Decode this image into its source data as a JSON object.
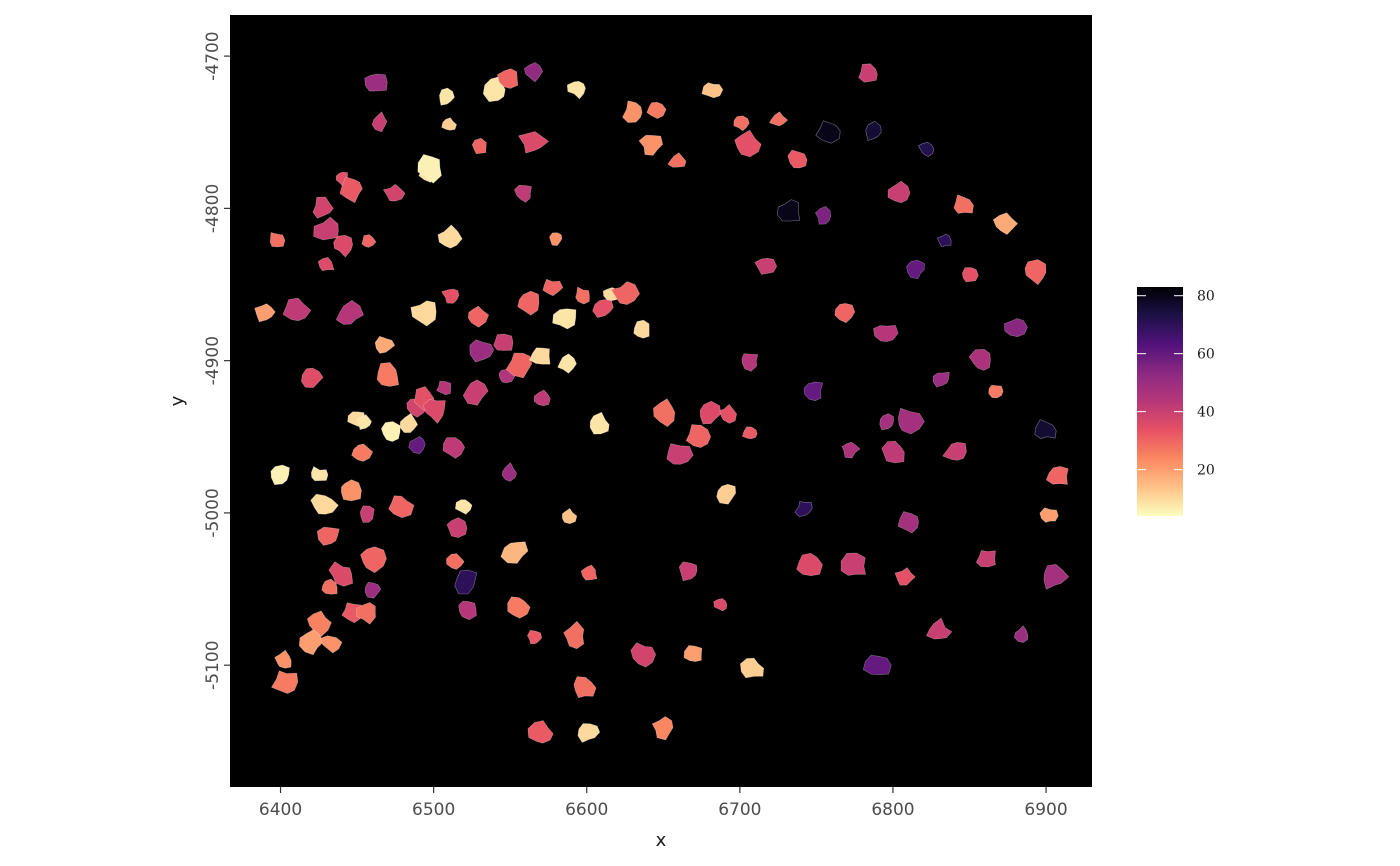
{
  "chart_data": {
    "type": "scatter",
    "title": "",
    "xlabel": "x",
    "ylabel": "y",
    "xlim": [
      6367,
      6930
    ],
    "ylim": [
      -5180,
      -4673
    ],
    "x_ticks": [
      6400,
      6500,
      6600,
      6700,
      6800,
      6900
    ],
    "x_tick_labels": [
      "6400",
      "6500",
      "6600",
      "6700",
      "6800",
      "6900"
    ],
    "y_ticks": [
      -4700,
      -4800,
      -4900,
      -5000,
      -5100
    ],
    "y_tick_labels": [
      "-4700",
      "-4800",
      "-4900",
      "-5000",
      "-5100"
    ],
    "panel_background": "#000000",
    "grid": false,
    "legend": {
      "position": "right",
      "type": "colorbar",
      "colormap": "magma (reversed)",
      "range": [
        4,
        83
      ],
      "ticks": [
        20,
        40,
        60,
        80
      ],
      "tick_labels": [
        "20",
        "40",
        "60",
        "80"
      ],
      "colors": [
        "#fcfdbf",
        "#fec287",
        "#fb8861",
        "#e65164",
        "#b73779",
        "#8c2981",
        "#51127c",
        "#1d1147",
        "#000004"
      ]
    },
    "description_note": "Cell segmentation polygons colored by value",
    "cells": [
      {
        "x": 6390,
        "y": -4868,
        "v": 20
      },
      {
        "x": 6397,
        "y": -4821,
        "v": 28
      },
      {
        "x": 6410,
        "y": -4867,
        "v": 42
      },
      {
        "x": 6400,
        "y": -4975,
        "v": 6
      },
      {
        "x": 6402,
        "y": -5097,
        "v": 22
      },
      {
        "x": 6403,
        "y": -5111,
        "v": 26
      },
      {
        "x": 6420,
        "y": -4911,
        "v": 35
      },
      {
        "x": 6430,
        "y": -4837,
        "v": 36
      },
      {
        "x": 6431,
        "y": -4815,
        "v": 40
      },
      {
        "x": 6428,
        "y": -4800,
        "v": 38
      },
      {
        "x": 6425,
        "y": -4975,
        "v": 8
      },
      {
        "x": 6428,
        "y": -4995,
        "v": 10
      },
      {
        "x": 6432,
        "y": -5015,
        "v": 30
      },
      {
        "x": 6432,
        "y": -5049,
        "v": 28
      },
      {
        "x": 6425,
        "y": -5072,
        "v": 25
      },
      {
        "x": 6420,
        "y": -5085,
        "v": 20
      },
      {
        "x": 6433,
        "y": -5085,
        "v": 22
      },
      {
        "x": 6440,
        "y": -4780,
        "v": 34
      },
      {
        "x": 6447,
        "y": -4787,
        "v": 32
      },
      {
        "x": 6441,
        "y": -4824,
        "v": 36
      },
      {
        "x": 6457,
        "y": -4822,
        "v": 30
      },
      {
        "x": 6445,
        "y": -4870,
        "v": 44
      },
      {
        "x": 6450,
        "y": -4938,
        "v": 10
      },
      {
        "x": 6455,
        "y": -4940,
        "v": 8
      },
      {
        "x": 6445,
        "y": -4985,
        "v": 22
      },
      {
        "x": 6453,
        "y": -4960,
        "v": 26
      },
      {
        "x": 6457,
        "y": -5001,
        "v": 40
      },
      {
        "x": 6440,
        "y": -5040,
        "v": 36
      },
      {
        "x": 6447,
        "y": -5065,
        "v": 32
      },
      {
        "x": 6460,
        "y": -5050,
        "v": 50
      },
      {
        "x": 6460,
        "y": -5030,
        "v": 30
      },
      {
        "x": 6457,
        "y": -5065,
        "v": 28
      },
      {
        "x": 6465,
        "y": -4743,
        "v": 40
      },
      {
        "x": 6462,
        "y": -4717,
        "v": 50
      },
      {
        "x": 6474,
        "y": -4790,
        "v": 38
      },
      {
        "x": 6468,
        "y": -4890,
        "v": 18
      },
      {
        "x": 6470,
        "y": -4910,
        "v": 26
      },
      {
        "x": 6472,
        "y": -4947,
        "v": 6
      },
      {
        "x": 6484,
        "y": -4942,
        "v": 10
      },
      {
        "x": 6478,
        "y": -4995,
        "v": 30
      },
      {
        "x": 6488,
        "y": -4930,
        "v": 38
      },
      {
        "x": 6490,
        "y": -4955,
        "v": 60
      },
      {
        "x": 6494,
        "y": -4868,
        "v": 10
      },
      {
        "x": 6493,
        "y": -4925,
        "v": 34
      },
      {
        "x": 6497,
        "y": -4776,
        "v": 8
      },
      {
        "x": 6498,
        "y": -4773,
        "v": 6
      },
      {
        "x": 6501,
        "y": -4932,
        "v": 36
      },
      {
        "x": 6508,
        "y": -4727,
        "v": 8
      },
      {
        "x": 6510,
        "y": -4745,
        "v": 12
      },
      {
        "x": 6510,
        "y": -4820,
        "v": 10
      },
      {
        "x": 6512,
        "y": -4857,
        "v": 34
      },
      {
        "x": 6507,
        "y": -4918,
        "v": 44
      },
      {
        "x": 6513,
        "y": -4957,
        "v": 42
      },
      {
        "x": 6515,
        "y": -5010,
        "v": 40
      },
      {
        "x": 6514,
        "y": -5032,
        "v": 28
      },
      {
        "x": 6521,
        "y": -5045,
        "v": 70
      },
      {
        "x": 6522,
        "y": -5063,
        "v": 44
      },
      {
        "x": 6520,
        "y": -4995,
        "v": 8
      },
      {
        "x": 6527,
        "y": -4920,
        "v": 40
      },
      {
        "x": 6528,
        "y": -4870,
        "v": 30
      },
      {
        "x": 6530,
        "y": -4760,
        "v": 30
      },
      {
        "x": 6532,
        "y": -4893,
        "v": 50
      },
      {
        "x": 6545,
        "y": -4888,
        "v": 40
      },
      {
        "x": 6547,
        "y": -4910,
        "v": 45
      },
      {
        "x": 6541,
        "y": -4722,
        "v": 8
      },
      {
        "x": 6549,
        "y": -4715,
        "v": 30
      },
      {
        "x": 6549,
        "y": -4974,
        "v": 50
      },
      {
        "x": 6553,
        "y": -5025,
        "v": 16
      },
      {
        "x": 6555,
        "y": -5062,
        "v": 26
      },
      {
        "x": 6559,
        "y": -4790,
        "v": 42
      },
      {
        "x": 6557,
        "y": -4902,
        "v": 30
      },
      {
        "x": 6562,
        "y": -4862,
        "v": 30
      },
      {
        "x": 6565,
        "y": -4710,
        "v": 52
      },
      {
        "x": 6565,
        "y": -4756,
        "v": 36
      },
      {
        "x": 6570,
        "y": -4897,
        "v": 10
      },
      {
        "x": 6571,
        "y": -4925,
        "v": 42
      },
      {
        "x": 6566,
        "y": -5082,
        "v": 32
      },
      {
        "x": 6570,
        "y": -5145,
        "v": 32
      },
      {
        "x": 6577,
        "y": -4852,
        "v": 30
      },
      {
        "x": 6580,
        "y": -4820,
        "v": 22
      },
      {
        "x": 6586,
        "y": -4872,
        "v": 8
      },
      {
        "x": 6587,
        "y": -4902,
        "v": 8
      },
      {
        "x": 6588,
        "y": -5002,
        "v": 14
      },
      {
        "x": 6592,
        "y": -5081,
        "v": 28
      },
      {
        "x": 6594,
        "y": -4721,
        "v": 8
      },
      {
        "x": 6597,
        "y": -4857,
        "v": 28
      },
      {
        "x": 6598,
        "y": -5115,
        "v": 28
      },
      {
        "x": 6601,
        "y": -5144,
        "v": 10
      },
      {
        "x": 6602,
        "y": -5040,
        "v": 30
      },
      {
        "x": 6608,
        "y": -4942,
        "v": 8
      },
      {
        "x": 6611,
        "y": -4865,
        "v": 34
      },
      {
        "x": 6616,
        "y": -4856,
        "v": 10
      },
      {
        "x": 6625,
        "y": -4856,
        "v": 30
      },
      {
        "x": 6631,
        "y": -4737,
        "v": 22
      },
      {
        "x": 6636,
        "y": -4880,
        "v": 10
      },
      {
        "x": 6637,
        "y": -5093,
        "v": 38
      },
      {
        "x": 6642,
        "y": -4758,
        "v": 22
      },
      {
        "x": 6645,
        "y": -4735,
        "v": 26
      },
      {
        "x": 6651,
        "y": -4934,
        "v": 28
      },
      {
        "x": 6650,
        "y": -5141,
        "v": 24
      },
      {
        "x": 6659,
        "y": -4769,
        "v": 28
      },
      {
        "x": 6660,
        "y": -4962,
        "v": 40
      },
      {
        "x": 6667,
        "y": -5038,
        "v": 40
      },
      {
        "x": 6670,
        "y": -5093,
        "v": 20
      },
      {
        "x": 6673,
        "y": -4950,
        "v": 30
      },
      {
        "x": 6680,
        "y": -4935,
        "v": 36
      },
      {
        "x": 6682,
        "y": -4722,
        "v": 14
      },
      {
        "x": 6688,
        "y": -5060,
        "v": 36
      },
      {
        "x": 6691,
        "y": -4987,
        "v": 12
      },
      {
        "x": 6692,
        "y": -4935,
        "v": 34
      },
      {
        "x": 6701,
        "y": -4744,
        "v": 28
      },
      {
        "x": 6705,
        "y": -4758,
        "v": 34
      },
      {
        "x": 6706,
        "y": -4900,
        "v": 44
      },
      {
        "x": 6707,
        "y": -4948,
        "v": 32
      },
      {
        "x": 6708,
        "y": -5102,
        "v": 12
      },
      {
        "x": 6717,
        "y": -4838,
        "v": 40
      },
      {
        "x": 6725,
        "y": -4742,
        "v": 28
      },
      {
        "x": 6732,
        "y": -4802,
        "v": 80
      },
      {
        "x": 6738,
        "y": -4768,
        "v": 32
      },
      {
        "x": 6742,
        "y": -4997,
        "v": 70
      },
      {
        "x": 6745,
        "y": -5034,
        "v": 36
      },
      {
        "x": 6748,
        "y": -4920,
        "v": 60
      },
      {
        "x": 6755,
        "y": -4805,
        "v": 56
      },
      {
        "x": 6758,
        "y": -4749,
        "v": 80
      },
      {
        "x": 6768,
        "y": -4868,
        "v": 30
      },
      {
        "x": 6772,
        "y": -4958,
        "v": 46
      },
      {
        "x": 6775,
        "y": -5035,
        "v": 40
      },
      {
        "x": 6784,
        "y": -4712,
        "v": 40
      },
      {
        "x": 6787,
        "y": -4750,
        "v": 76
      },
      {
        "x": 6790,
        "y": -5100,
        "v": 60
      },
      {
        "x": 6795,
        "y": -4882,
        "v": 44
      },
      {
        "x": 6796,
        "y": -4940,
        "v": 48
      },
      {
        "x": 6800,
        "y": -4960,
        "v": 42
      },
      {
        "x": 6804,
        "y": -4790,
        "v": 40
      },
      {
        "x": 6808,
        "y": -5042,
        "v": 34
      },
      {
        "x": 6810,
        "y": -4940,
        "v": 48
      },
      {
        "x": 6811,
        "y": -5006,
        "v": 48
      },
      {
        "x": 6815,
        "y": -4840,
        "v": 60
      },
      {
        "x": 6822,
        "y": -4761,
        "v": 72
      },
      {
        "x": 6830,
        "y": -5078,
        "v": 40
      },
      {
        "x": 6832,
        "y": -4912,
        "v": 50
      },
      {
        "x": 6834,
        "y": -4821,
        "v": 70
      },
      {
        "x": 6841,
        "y": -4960,
        "v": 40
      },
      {
        "x": 6846,
        "y": -4798,
        "v": 28
      },
      {
        "x": 6850,
        "y": -4844,
        "v": 34
      },
      {
        "x": 6858,
        "y": -4900,
        "v": 46
      },
      {
        "x": 6861,
        "y": -5030,
        "v": 40
      },
      {
        "x": 6867,
        "y": -4920,
        "v": 26
      },
      {
        "x": 6873,
        "y": -4810,
        "v": 18
      },
      {
        "x": 6880,
        "y": -4878,
        "v": 54
      },
      {
        "x": 6884,
        "y": -5080,
        "v": 50
      },
      {
        "x": 6893,
        "y": -4842,
        "v": 30
      },
      {
        "x": 6900,
        "y": -4946,
        "v": 76
      },
      {
        "x": 6902,
        "y": -5002,
        "v": 20
      },
      {
        "x": 6905,
        "y": -5042,
        "v": 48
      },
      {
        "x": 6908,
        "y": -4976,
        "v": 30
      }
    ]
  }
}
